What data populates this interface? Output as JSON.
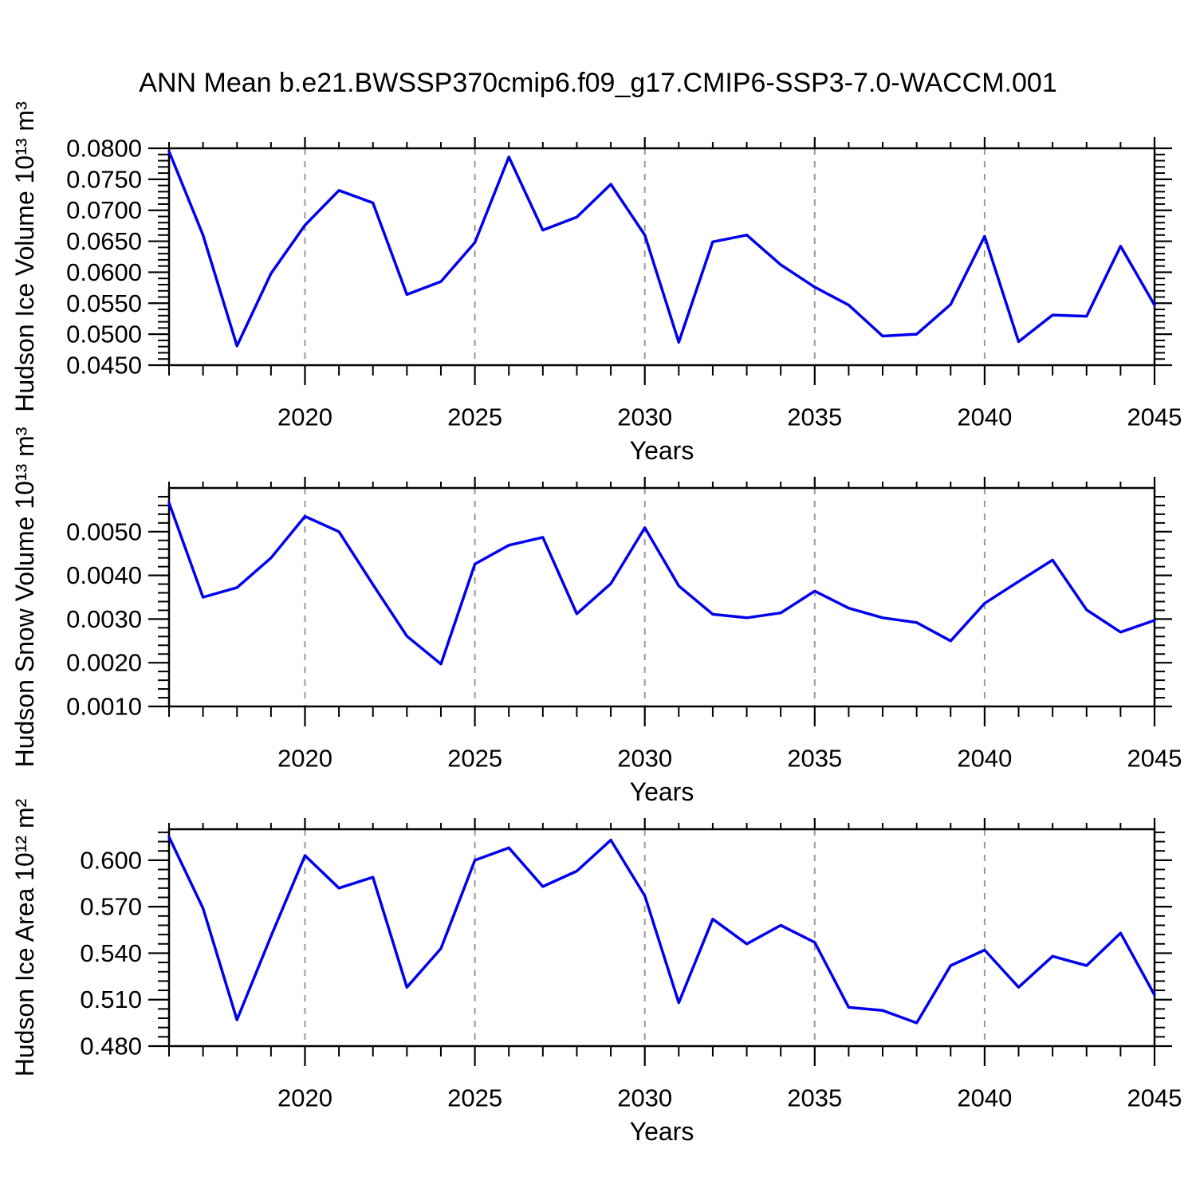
{
  "title": "ANN Mean b.e21.BWSSP370cmip6.f09_g17.CMIP6-SSP3-7.0-WACCM.001",
  "colors": {
    "line": "#0000EE",
    "grid": "#999999",
    "axis": "#000000",
    "background": "#ffffff"
  },
  "x_axis": {
    "label": "Years",
    "years": [
      2016,
      2017,
      2018,
      2019,
      2020,
      2021,
      2022,
      2023,
      2024,
      2025,
      2026,
      2027,
      2028,
      2029,
      2030,
      2031,
      2032,
      2033,
      2034,
      2035,
      2036,
      2037,
      2038,
      2039,
      2040,
      2041,
      2042,
      2043,
      2044,
      2045
    ],
    "major_ticks": [
      2020,
      2025,
      2030,
      2035,
      2040,
      2045
    ],
    "major_tick_labels": [
      "2020",
      "2025",
      "2030",
      "2035",
      "2040",
      "2045"
    ],
    "grid_years": [
      2020,
      2025,
      2030,
      2035,
      2040
    ]
  },
  "chart_data": [
    {
      "type": "line",
      "id": "hudson-ice-volume",
      "ylabel": "Hudson Ice Volume 10¹³ m³",
      "xlabel": "Years",
      "ylim": [
        0.045,
        0.08
      ],
      "ytick_values": [
        0.045,
        0.05,
        0.055,
        0.06,
        0.065,
        0.07,
        0.075,
        0.08
      ],
      "ytick_labels": [
        "0.0450",
        "0.0500",
        "0.0550",
        "0.0600",
        "0.0650",
        "0.0700",
        "0.0750",
        "0.0800"
      ],
      "ymajor_step": 0.005,
      "yminor_step": 0.001,
      "grid_on": "x-dashed",
      "legend": "none",
      "x": [
        2016,
        2017,
        2018,
        2019,
        2020,
        2021,
        2022,
        2023,
        2024,
        2025,
        2026,
        2027,
        2028,
        2029,
        2030,
        2031,
        2032,
        2033,
        2034,
        2035,
        2036,
        2037,
        2038,
        2039,
        2040,
        2041,
        2042,
        2043,
        2044,
        2045
      ],
      "values": [
        0.0795,
        0.066,
        0.0481,
        0.0598,
        0.0676,
        0.0732,
        0.0712,
        0.0564,
        0.0585,
        0.0648,
        0.0786,
        0.0668,
        0.0689,
        0.0742,
        0.066,
        0.0487,
        0.0649,
        0.066,
        0.0612,
        0.0576,
        0.0547,
        0.0497,
        0.05,
        0.0548,
        0.0658,
        0.0488,
        0.0531,
        0.0529,
        0.0642,
        0.0547
      ]
    },
    {
      "type": "line",
      "id": "hudson-snow-volume",
      "ylabel": "Hudson Snow Volume 10¹³ m³",
      "xlabel": "Years",
      "ylim": [
        0.001,
        0.006
      ],
      "ytick_values": [
        0.001,
        0.002,
        0.003,
        0.004,
        0.005
      ],
      "ytick_labels": [
        "0.0010",
        "0.0020",
        "0.0030",
        "0.0040",
        "0.0050"
      ],
      "ymajor_step": 0.001,
      "yminor_step": 0.0002,
      "grid_on": "x-dashed",
      "legend": "none",
      "x": [
        2016,
        2017,
        2018,
        2019,
        2020,
        2021,
        2022,
        2023,
        2024,
        2025,
        2026,
        2027,
        2028,
        2029,
        2030,
        2031,
        2032,
        2033,
        2034,
        2035,
        2036,
        2037,
        2038,
        2039,
        2040,
        2041,
        2042,
        2043,
        2044,
        2045
      ],
      "values": [
        0.00566,
        0.0035,
        0.00372,
        0.0044,
        0.00535,
        0.005,
        0.00379,
        0.00261,
        0.00197,
        0.00426,
        0.00469,
        0.00487,
        0.00312,
        0.00381,
        0.00509,
        0.00376,
        0.00311,
        0.00303,
        0.00314,
        0.00364,
        0.00325,
        0.00303,
        0.00292,
        0.0025,
        0.00336,
        0.00386,
        0.00435,
        0.00321,
        0.0027,
        0.00297
      ]
    },
    {
      "type": "line",
      "id": "hudson-ice-area",
      "ylabel": "Hudson Ice Area 10¹² m²",
      "xlabel": "Years",
      "ylim": [
        0.48,
        0.62
      ],
      "ytick_values": [
        0.48,
        0.51,
        0.54,
        0.57,
        0.6
      ],
      "ytick_labels": [
        "0.480",
        "0.510",
        "0.540",
        "0.570",
        "0.600"
      ],
      "ymajor_step": 0.03,
      "yminor_step": 0.006,
      "grid_on": "x-dashed",
      "legend": "none",
      "x": [
        2016,
        2017,
        2018,
        2019,
        2020,
        2021,
        2022,
        2023,
        2024,
        2025,
        2026,
        2027,
        2028,
        2029,
        2030,
        2031,
        2032,
        2033,
        2034,
        2035,
        2036,
        2037,
        2038,
        2039,
        2040,
        2041,
        2042,
        2043,
        2044,
        2045
      ],
      "values": [
        0.615,
        0.569,
        0.497,
        0.551,
        0.603,
        0.582,
        0.589,
        0.518,
        0.543,
        0.6,
        0.608,
        0.583,
        0.593,
        0.613,
        0.577,
        0.508,
        0.562,
        0.546,
        0.558,
        0.547,
        0.505,
        0.503,
        0.495,
        0.532,
        0.542,
        0.518,
        0.538,
        0.532,
        0.553,
        0.513
      ]
    }
  ]
}
